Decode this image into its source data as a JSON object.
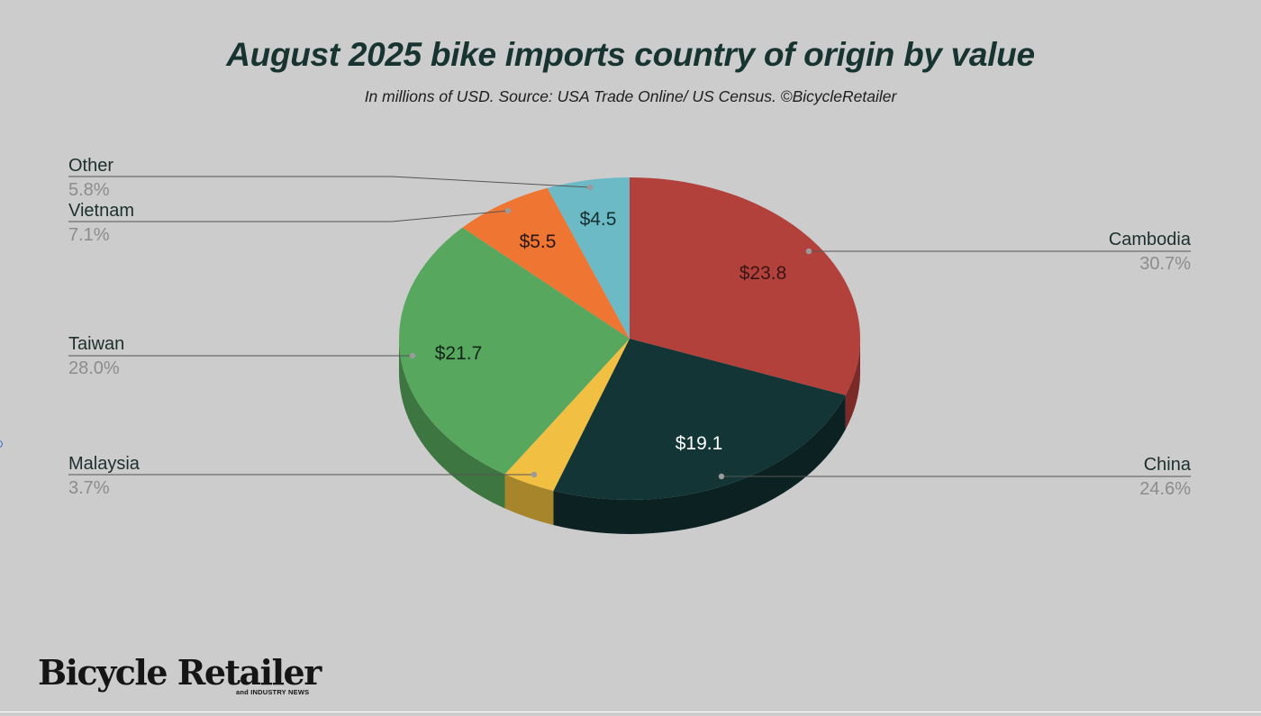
{
  "chart_data": {
    "type": "pie",
    "title": "August 2025 bike imports country of origin by value",
    "subtitle": "In millions of USD. Source: USA Trade Online/ US Census. ©BicycleRetailer",
    "slices": [
      {
        "name": "Cambodia",
        "value": 23.8,
        "value_label": "$23.8",
        "percent_label": "30.7%",
        "color": "#b2413c",
        "side_color": "#7c2a27",
        "text_color": "#3a1514"
      },
      {
        "name": "China",
        "value": 19.1,
        "value_label": "$19.1",
        "percent_label": "24.6%",
        "color": "#133536",
        "side_color": "#0b2122",
        "text_color": "#ffffff"
      },
      {
        "name": "Malaysia",
        "value": 2.9,
        "value_label": "",
        "percent_label": "3.7%",
        "color": "#f1c043",
        "side_color": "#a7862b",
        "text_color": "#1d2f2c"
      },
      {
        "name": "Taiwan",
        "value": 21.7,
        "value_label": "$21.7",
        "percent_label": "28.0%",
        "color": "#57a85e",
        "side_color": "#3d7641",
        "text_color": "#12241a"
      },
      {
        "name": "Vietnam",
        "value": 5.5,
        "value_label": "$5.5",
        "percent_label": "7.1%",
        "color": "#ee7632",
        "side_color": "#a65223",
        "text_color": "#2a160a"
      },
      {
        "name": "Other",
        "value": 4.5,
        "value_label": "$4.5",
        "percent_label": "5.8%",
        "color": "#6cbac6",
        "side_color": "#4b828b",
        "text_color": "#13302f"
      }
    ],
    "start": "12 o'clock",
    "direction": "clockwise",
    "style": "3d-tilted",
    "legend": "none (callout labels left and right)"
  },
  "branding": {
    "logo_main": "Bicycle Retailer",
    "logo_sub": "and INDUSTRY NEWS"
  }
}
